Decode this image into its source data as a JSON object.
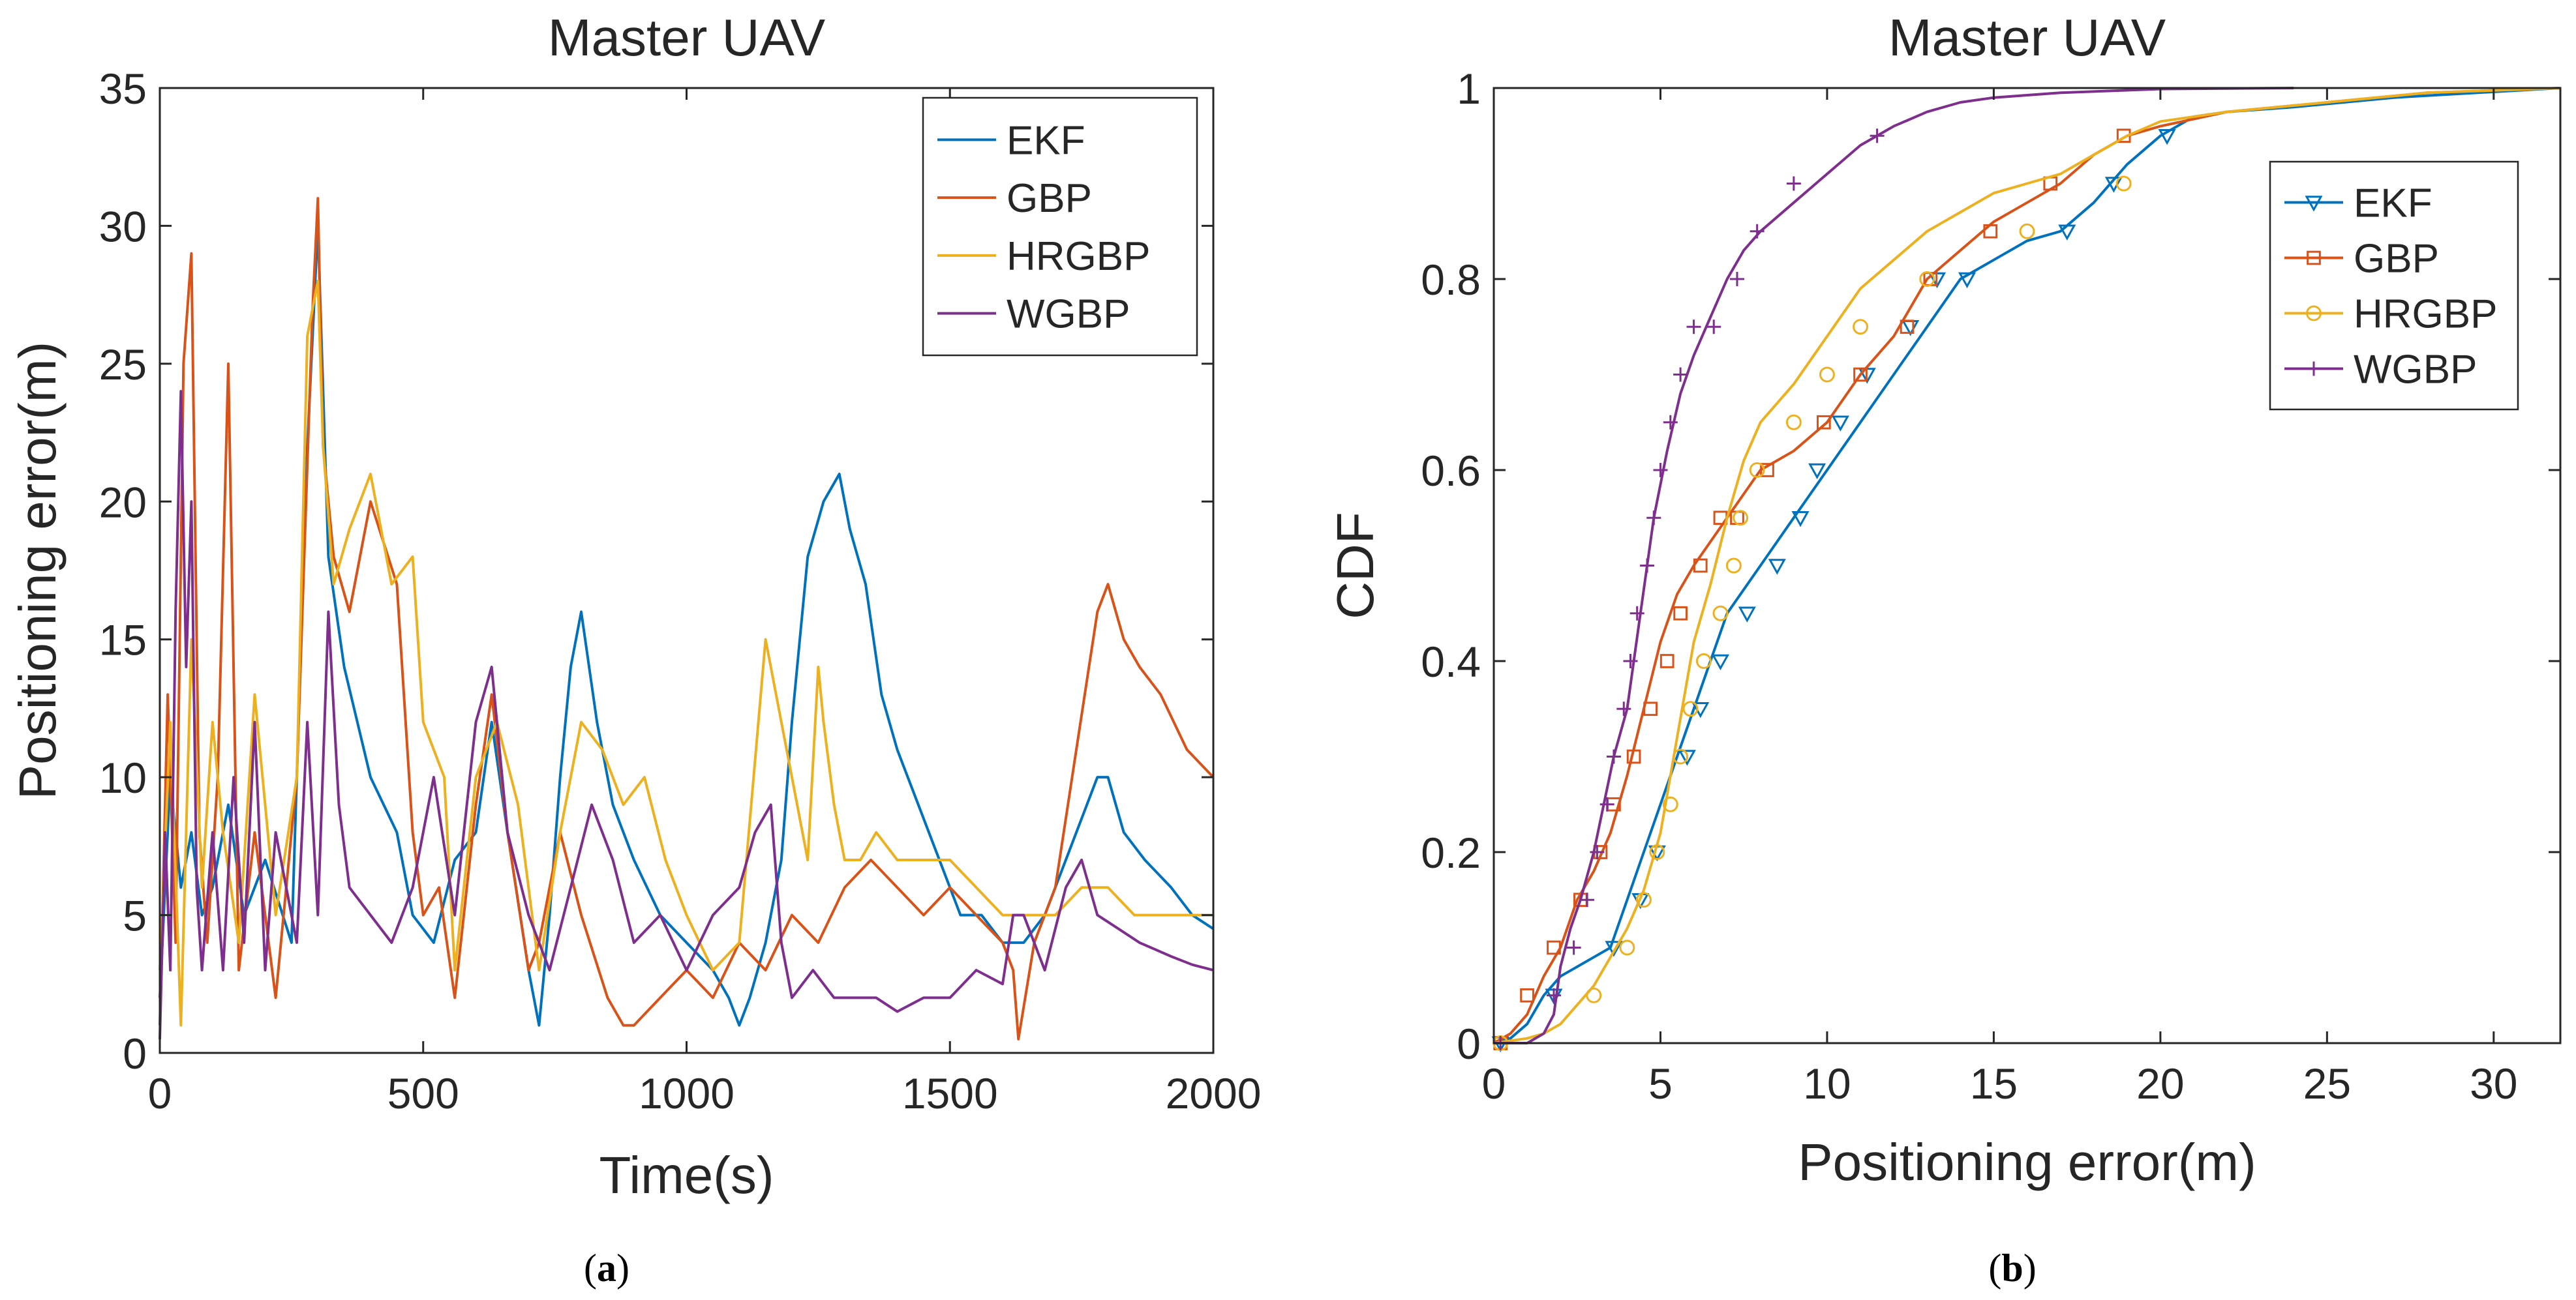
{
  "colors": {
    "EKF": "#0072BD",
    "GBP": "#D95319",
    "HRGBP": "#EDB120",
    "WGBP": "#7E2F8E",
    "axis": "#262626",
    "background": "#ffffff"
  },
  "chart_data": [
    {
      "id": "a",
      "type": "line",
      "title": "Master UAV",
      "xlabel": "Time(s)",
      "ylabel": "Positioning error(m)",
      "xlim": [
        0,
        2000
      ],
      "ylim": [
        0,
        35
      ],
      "xticks": [
        0,
        500,
        1000,
        1500,
        2000
      ],
      "yticks": [
        0,
        5,
        10,
        15,
        20,
        25,
        30,
        35
      ],
      "legend": [
        "EKF",
        "GBP",
        "HRGBP",
        "WGBP"
      ],
      "legend_position": "top-right",
      "caption_open": "(",
      "caption_letter": "a",
      "caption_close": ")",
      "series": [
        {
          "name": "EKF",
          "x": [
            0,
            20,
            40,
            60,
            80,
            100,
            130,
            160,
            200,
            250,
            280,
            300,
            320,
            350,
            400,
            450,
            480,
            520,
            560,
            600,
            630,
            660,
            700,
            720,
            740,
            760,
            780,
            800,
            830,
            860,
            900,
            950,
            1000,
            1050,
            1080,
            1100,
            1120,
            1150,
            1180,
            1200,
            1230,
            1260,
            1290,
            1310,
            1340,
            1370,
            1400,
            1440,
            1480,
            1520,
            1560,
            1600,
            1640,
            1680,
            1720,
            1760,
            1780,
            1800,
            1830,
            1870,
            1920,
            1960,
            2000
          ],
          "y": [
            2,
            10,
            6,
            8,
            5,
            6,
            9,
            5,
            7,
            4,
            22,
            30,
            18,
            14,
            10,
            8,
            5,
            4,
            7,
            8,
            12,
            8,
            3,
            1,
            5,
            10,
            14,
            16,
            12,
            9,
            7,
            5,
            4,
            3,
            2,
            1,
            2,
            4,
            7,
            12,
            18,
            20,
            21,
            19,
            17,
            13,
            11,
            9,
            7,
            5,
            5,
            4,
            4,
            5,
            7,
            9,
            10,
            10,
            8,
            7,
            6,
            5,
            4.5
          ]
        },
        {
          "name": "GBP",
          "x": [
            0,
            15,
            30,
            45,
            60,
            75,
            90,
            110,
            130,
            150,
            180,
            220,
            260,
            290,
            300,
            310,
            330,
            360,
            400,
            450,
            480,
            500,
            530,
            560,
            600,
            630,
            660,
            700,
            720,
            760,
            800,
            850,
            880,
            900,
            950,
            1000,
            1050,
            1100,
            1150,
            1200,
            1250,
            1300,
            1350,
            1400,
            1450,
            1500,
            1550,
            1600,
            1620,
            1630,
            1660,
            1700,
            1740,
            1780,
            1800,
            1830,
            1860,
            1900,
            1950,
            2000
          ],
          "y": [
            1,
            13,
            4,
            25,
            29,
            8,
            4,
            10,
            25,
            3,
            8,
            2,
            10,
            27,
            31,
            22,
            18,
            16,
            20,
            17,
            8,
            5,
            6,
            2,
            9,
            13,
            8,
            3,
            4,
            8,
            5,
            2,
            1,
            1,
            2,
            3,
            2,
            4,
            3,
            5,
            4,
            6,
            7,
            6,
            5,
            6,
            5,
            4,
            3,
            0.5,
            4,
            6,
            11,
            16,
            17,
            15,
            14,
            13,
            11,
            10
          ]
        },
        {
          "name": "HRGBP",
          "x": [
            0,
            20,
            40,
            60,
            80,
            100,
            120,
            150,
            180,
            220,
            260,
            280,
            300,
            310,
            330,
            360,
            400,
            440,
            480,
            500,
            540,
            560,
            600,
            640,
            680,
            720,
            760,
            800,
            840,
            880,
            920,
            960,
            1000,
            1050,
            1100,
            1150,
            1180,
            1200,
            1230,
            1250,
            1260,
            1280,
            1300,
            1330,
            1360,
            1400,
            1450,
            1500,
            1550,
            1600,
            1650,
            1700,
            1750,
            1800,
            1850,
            1900,
            1950,
            2000
          ],
          "y": [
            3,
            12,
            1,
            15,
            6,
            12,
            8,
            4,
            13,
            5,
            10,
            26,
            28,
            22,
            17,
            19,
            21,
            17,
            18,
            12,
            10,
            3,
            10,
            12,
            9,
            3,
            8,
            12,
            11,
            9,
            10,
            7,
            5,
            3,
            4,
            15,
            12,
            10,
            7,
            14,
            12,
            9,
            7,
            7,
            8,
            7,
            7,
            7,
            6,
            5,
            5,
            5,
            6,
            6,
            5,
            5,
            5,
            5
          ]
        },
        {
          "name": "WGBP",
          "x": [
            0,
            10,
            20,
            30,
            40,
            50,
            60,
            70,
            80,
            100,
            120,
            140,
            160,
            180,
            200,
            220,
            240,
            260,
            280,
            300,
            320,
            340,
            360,
            400,
            440,
            480,
            520,
            560,
            600,
            630,
            660,
            700,
            740,
            780,
            820,
            860,
            900,
            950,
            1000,
            1050,
            1100,
            1130,
            1160,
            1180,
            1200,
            1240,
            1280,
            1320,
            1360,
            1400,
            1450,
            1500,
            1550,
            1600,
            1620,
            1640,
            1680,
            1720,
            1750,
            1780,
            1820,
            1860,
            1920,
            1960,
            2000
          ],
          "y": [
            0.5,
            8,
            3,
            16,
            24,
            14,
            20,
            6,
            3,
            8,
            3,
            10,
            4,
            12,
            3,
            8,
            6,
            4,
            12,
            5,
            16,
            9,
            6,
            5,
            4,
            6,
            10,
            5,
            12,
            14,
            8,
            5,
            3,
            6,
            9,
            7,
            4,
            5,
            3,
            5,
            6,
            8,
            9,
            4,
            2,
            3,
            2,
            2,
            2,
            1.5,
            2,
            2,
            3,
            2.5,
            5,
            5,
            3,
            6,
            7,
            5,
            4.5,
            4,
            3.5,
            3.2,
            3
          ]
        }
      ]
    },
    {
      "id": "b",
      "type": "line",
      "title": "Master UAV",
      "xlabel": "Positioning error(m)",
      "ylabel": "CDF",
      "xlim": [
        0,
        32
      ],
      "ylim": [
        0,
        1
      ],
      "xticks": [
        0,
        5,
        10,
        15,
        20,
        25,
        30
      ],
      "yticks": [
        0,
        0.2,
        0.4,
        0.6,
        0.8,
        1
      ],
      "ytick_labels": [
        "0",
        "0.2",
        "0.4",
        "0.6",
        "0.8",
        "1"
      ],
      "legend": [
        "EKF",
        "GBP",
        "HRGBP",
        "WGBP"
      ],
      "legend_markers": [
        "triangle-down",
        "square",
        "circle",
        "plus"
      ],
      "legend_position": "top-right",
      "caption_open": "(",
      "caption_letter": "b",
      "caption_close": ")",
      "series": [
        {
          "name": "EKF",
          "x": [
            0,
            0.5,
            1.0,
            1.5,
            2.0,
            3.0,
            3.5,
            4.0,
            4.5,
            5.0,
            5.5,
            6.0,
            6.5,
            7.0,
            8.0,
            9.0,
            10.0,
            11.0,
            12.0,
            13.0,
            14.0,
            15.0,
            16.0,
            17.0,
            18.0,
            19.0,
            20.0,
            21.0,
            22.0,
            24.0,
            27.0,
            32.0
          ],
          "y": [
            0,
            0.005,
            0.02,
            0.05,
            0.07,
            0.09,
            0.1,
            0.15,
            0.2,
            0.25,
            0.3,
            0.35,
            0.4,
            0.45,
            0.5,
            0.55,
            0.6,
            0.65,
            0.7,
            0.75,
            0.8,
            0.82,
            0.84,
            0.85,
            0.88,
            0.92,
            0.95,
            0.97,
            0.975,
            0.98,
            0.99,
            1.0
          ],
          "markers_x": [
            0.2,
            1.8,
            3.6,
            4.4,
            4.9,
            5.8,
            6.2,
            6.8,
            7.6,
            8.5,
            9.2,
            9.7,
            10.4,
            11.2,
            12.5,
            13.3,
            14.2,
            17.2,
            18.6,
            20.2
          ],
          "markers_y": [
            0,
            0.05,
            0.1,
            0.15,
            0.2,
            0.3,
            0.35,
            0.4,
            0.45,
            0.5,
            0.55,
            0.6,
            0.65,
            0.7,
            0.75,
            0.8,
            0.8,
            0.85,
            0.9,
            0.95
          ]
        },
        {
          "name": "GBP",
          "x": [
            0,
            0.5,
            1.0,
            1.5,
            2.0,
            2.5,
            3.0,
            3.5,
            4.0,
            4.5,
            5.0,
            5.5,
            6.0,
            7.0,
            8.0,
            9.0,
            10.0,
            11.0,
            12.0,
            13.0,
            14.0,
            15.0,
            16.0,
            17.0,
            18.0,
            19.0,
            20.0,
            22.0,
            25.0,
            28.0,
            32.0
          ],
          "y": [
            0,
            0.01,
            0.03,
            0.07,
            0.1,
            0.15,
            0.18,
            0.22,
            0.28,
            0.35,
            0.42,
            0.47,
            0.5,
            0.55,
            0.6,
            0.62,
            0.65,
            0.7,
            0.74,
            0.8,
            0.83,
            0.86,
            0.88,
            0.9,
            0.93,
            0.95,
            0.96,
            0.975,
            0.985,
            0.995,
            1.0
          ],
          "markers_x": [
            0.2,
            1.0,
            1.8,
            2.6,
            3.2,
            3.6,
            4.2,
            4.7,
            5.2,
            5.6,
            6.2,
            6.8,
            7.3,
            8.2,
            9.9,
            11.0,
            12.4,
            13.1,
            14.9,
            16.7,
            18.9
          ],
          "markers_y": [
            0,
            0.05,
            0.1,
            0.15,
            0.2,
            0.25,
            0.3,
            0.35,
            0.4,
            0.45,
            0.5,
            0.55,
            0.55,
            0.6,
            0.65,
            0.7,
            0.75,
            0.8,
            0.85,
            0.9,
            0.95
          ]
        },
        {
          "name": "HRGBP",
          "x": [
            0,
            1.0,
            1.5,
            2.0,
            2.5,
            3.0,
            3.5,
            4.0,
            4.5,
            5.0,
            5.5,
            6.0,
            6.5,
            7.0,
            7.5,
            8.0,
            9.0,
            10.0,
            11.0,
            12.0,
            13.0,
            14.0,
            15.0,
            16.0,
            17.0,
            18.0,
            19.0,
            20.0,
            22.0,
            25.0,
            28.0,
            32.0
          ],
          "y": [
            0,
            0.005,
            0.01,
            0.02,
            0.04,
            0.06,
            0.09,
            0.12,
            0.16,
            0.22,
            0.32,
            0.42,
            0.48,
            0.55,
            0.61,
            0.65,
            0.69,
            0.74,
            0.79,
            0.82,
            0.85,
            0.87,
            0.89,
            0.9,
            0.91,
            0.93,
            0.95,
            0.965,
            0.975,
            0.985,
            0.995,
            1.0
          ],
          "markers_x": [
            0.2,
            3.0,
            4.0,
            4.5,
            4.9,
            5.3,
            5.6,
            5.9,
            6.3,
            6.8,
            7.2,
            7.4,
            7.9,
            9.0,
            10.0,
            11.0,
            13.0,
            16.0,
            18.9
          ],
          "markers_y": [
            0,
            0.05,
            0.1,
            0.15,
            0.2,
            0.25,
            0.3,
            0.35,
            0.4,
            0.45,
            0.5,
            0.55,
            0.6,
            0.65,
            0.7,
            0.75,
            0.8,
            0.85,
            0.9
          ]
        },
        {
          "name": "WGBP",
          "x": [
            0,
            1.0,
            1.5,
            1.8,
            2.0,
            2.3,
            2.6,
            3.0,
            3.3,
            3.6,
            4.0,
            4.4,
            4.8,
            5.2,
            5.6,
            6.0,
            6.5,
            7.0,
            7.5,
            8.0,
            9.0,
            10.0,
            11.0,
            12.0,
            13.0,
            14.0,
            15.0,
            17.0,
            20.0,
            24.0
          ],
          "y": [
            0,
            0.0,
            0.01,
            0.03,
            0.08,
            0.12,
            0.15,
            0.2,
            0.25,
            0.3,
            0.35,
            0.45,
            0.55,
            0.62,
            0.68,
            0.72,
            0.76,
            0.8,
            0.83,
            0.85,
            0.88,
            0.91,
            0.94,
            0.96,
            0.975,
            0.985,
            0.99,
            0.995,
            0.999,
            1.0
          ],
          "markers_x": [
            0.2,
            1.8,
            2.4,
            2.8,
            3.1,
            3.4,
            3.6,
            3.9,
            4.1,
            4.3,
            4.6,
            4.8,
            5.0,
            5.3,
            5.6,
            6.0,
            6.6,
            7.3,
            7.9,
            9.0,
            11.5
          ],
          "markers_y": [
            0,
            0.05,
            0.1,
            0.15,
            0.2,
            0.25,
            0.3,
            0.35,
            0.4,
            0.45,
            0.5,
            0.55,
            0.6,
            0.65,
            0.7,
            0.75,
            0.75,
            0.8,
            0.85,
            0.9,
            0.95
          ]
        }
      ]
    }
  ]
}
